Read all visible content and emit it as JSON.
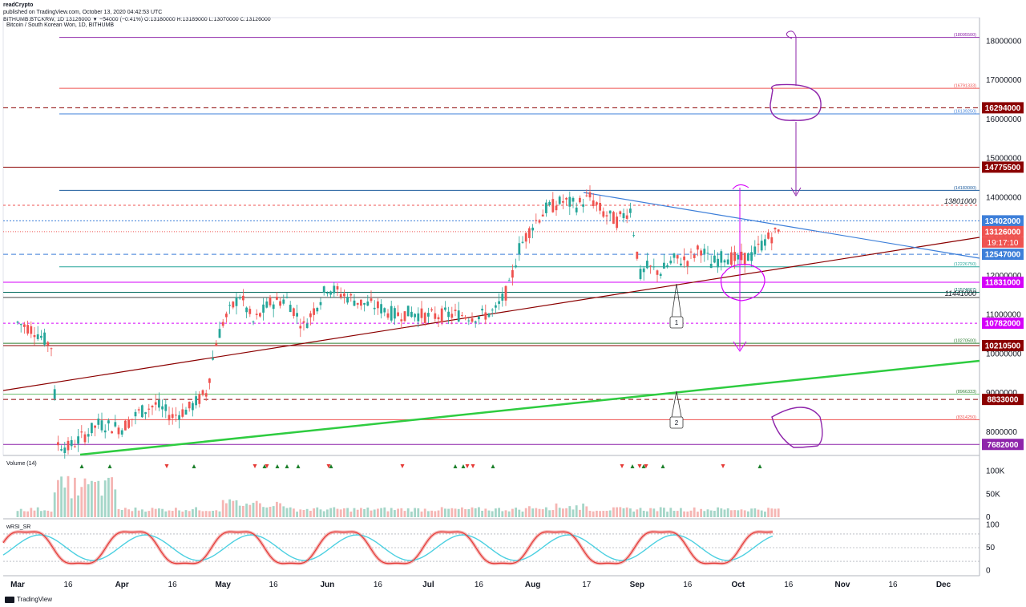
{
  "header": {
    "publisher": "readCrypto",
    "published_on": "published on TradingView.com, October 13, 2020 04:42:53 UTC",
    "quote": "BITHUMB:BTCKRW, 1D 13126000 ▼ −54000 (−0.41%) O:13180000 H:13189000 L:13070000 C:13126000"
  },
  "chart_title": "Bitcoin / South Korean Won, 1D, BITHUMB",
  "footer": {
    "brand": "TradingView"
  },
  "colors": {
    "up": "#26a69a",
    "down": "#ef5350",
    "darkred": "#8b0000",
    "green_line": "#2ecc40",
    "blue": "#3d7fd9",
    "magenta": "#d500f9",
    "purple": "#8e24aa"
  },
  "chart_data": [
    {
      "type": "line",
      "panel": "price",
      "title": "Bitcoin / South Korean Won, 1D, BITHUMB",
      "ylim": [
        7400000,
        18600000
      ],
      "y_ticks": [
        8000000,
        9000000,
        10000000,
        11000000,
        12000000,
        13000000,
        14000000,
        15000000,
        16000000,
        17000000,
        18000000
      ],
      "y_tick_labels": [
        "8000000",
        "9000000",
        "10000000",
        "11000000",
        "12000000",
        "13000000",
        "14000000",
        "15000000",
        "16000000",
        "17000000",
        "18000000"
      ],
      "x_labels": [
        "Mar",
        "16",
        "Apr",
        "16",
        "May",
        "16",
        "Jun",
        "16",
        "Jul",
        "16",
        "Aug",
        "17",
        "Sep",
        "16",
        "Oct",
        "16",
        "Nov",
        "16",
        "Dec"
      ],
      "x_label_dates": [
        "2020-03-01",
        "2020-03-16",
        "2020-04-01",
        "2020-04-16",
        "2020-05-01",
        "2020-05-16",
        "2020-06-01",
        "2020-06-16",
        "2020-07-01",
        "2020-07-16",
        "2020-08-01",
        "2020-08-17",
        "2020-09-01",
        "2020-09-16",
        "2020-10-01",
        "2020-10-16",
        "2020-11-01",
        "2020-11-16",
        "2020-12-01"
      ],
      "series": [
        {
          "dates": [
            "2020-03-01",
            "2020-03-06",
            "2020-03-11",
            "2020-03-13",
            "2020-03-16",
            "2020-03-20",
            "2020-03-25",
            "2020-04-01",
            "2020-04-06",
            "2020-04-11",
            "2020-04-16",
            "2020-04-21",
            "2020-04-26",
            "2020-04-29",
            "2020-05-01",
            "2020-05-06",
            "2020-05-10",
            "2020-05-15",
            "2020-05-20",
            "2020-05-25",
            "2020-06-01",
            "2020-06-06",
            "2020-06-11",
            "2020-06-16",
            "2020-06-21",
            "2020-06-26",
            "2020-07-01",
            "2020-07-06",
            "2020-07-11",
            "2020-07-16",
            "2020-07-21",
            "2020-07-25",
            "2020-07-28",
            "2020-08-01",
            "2020-08-05",
            "2020-08-10",
            "2020-08-14",
            "2020-08-18",
            "2020-08-22",
            "2020-08-26",
            "2020-08-30",
            "2020-09-02",
            "2020-09-04",
            "2020-09-08",
            "2020-09-12",
            "2020-09-16",
            "2020-09-20",
            "2020-09-23",
            "2020-09-27",
            "2020-10-01",
            "2020-10-05",
            "2020-10-09",
            "2020-10-13"
          ],
          "values": [
            10800000,
            10600000,
            10200000,
            7700000,
            7600000,
            7850000,
            8200000,
            8100000,
            8500000,
            8700000,
            8400000,
            8600000,
            9000000,
            10300000,
            10800000,
            11500000,
            10800000,
            11300000,
            11400000,
            10700000,
            11700000,
            11500000,
            11300000,
            11200000,
            11000000,
            11050000,
            10950000,
            11000000,
            11000000,
            10950000,
            11100000,
            11700000,
            12700000,
            13300000,
            13700000,
            13900000,
            13800000,
            14000000,
            13600000,
            13400000,
            13700000,
            12000000,
            12200000,
            12100000,
            12400000,
            12400000,
            12700000,
            12300000,
            12500000,
            12400000,
            12500000,
            12900000,
            13126000
          ]
        }
      ]
    },
    {
      "type": "bar",
      "panel": "volume",
      "title": "Volume (14)",
      "ylim": [
        0,
        120000
      ],
      "y_ticks": [
        0,
        50000,
        100000
      ],
      "y_tick_labels": [
        "0",
        "50K",
        "100K"
      ]
    },
    {
      "type": "line",
      "panel": "indicator",
      "title": "wRSI_SR",
      "ylim": [
        -8,
        108
      ],
      "y_ticks": [
        0,
        50,
        100
      ],
      "y_tick_labels": [
        "0",
        "50",
        "100"
      ]
    }
  ],
  "price_badges": {
    "p18": "18095500",
    "p16a": "16791333",
    "p16b": "16294000",
    "p16c": "16139250",
    "p14": "14775500",
    "p14b": "14183000",
    "p13a": "13801000",
    "p13b": "13402000",
    "p13c": "13126000",
    "countdown": "19:17:10",
    "p12a": "12547000",
    "p12b": "12226750",
    "p11a": "11831000",
    "p11b": "11574667",
    "p11c": "11441000",
    "p10a": "10782000",
    "p10b": "10270500",
    "p10c": "10210500",
    "p8a": "8966333",
    "p8b": "8833000",
    "p8c": "8314250",
    "p7": "7682000"
  },
  "annotations": {
    "one": "1",
    "two": "2"
  }
}
